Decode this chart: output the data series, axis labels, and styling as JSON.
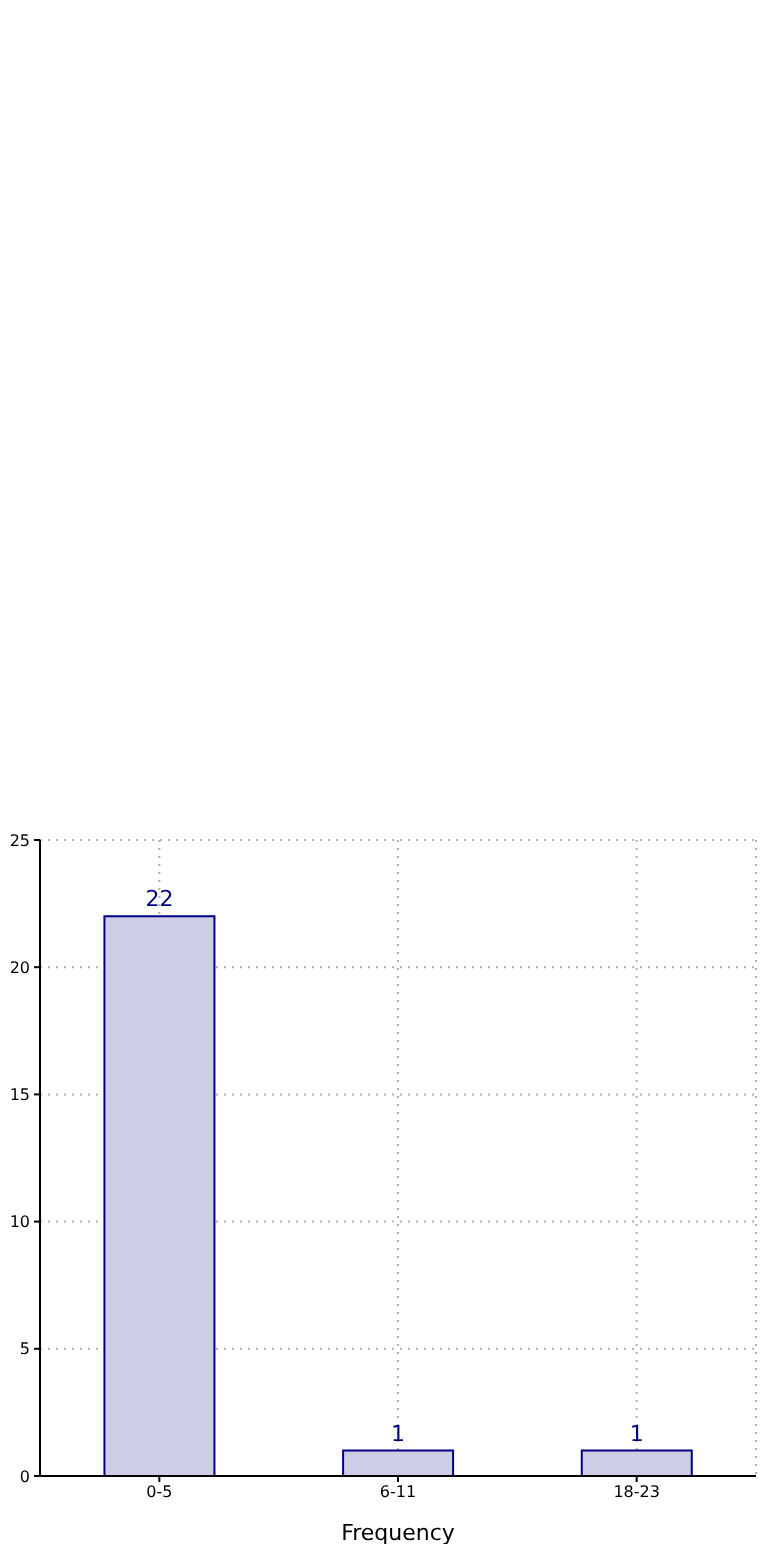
{
  "chart_data": {
    "type": "bar",
    "xlabel": "Frequency",
    "categories": [
      "0-5",
      "6-11",
      "18-23"
    ],
    "values": [
      22,
      1,
      1
    ],
    "color": "#cdcde5",
    "ylim": [
      0,
      25
    ],
    "yticks": [
      0,
      5,
      10,
      15,
      20,
      25
    ],
    "grid": true,
    "data_labels": true
  }
}
